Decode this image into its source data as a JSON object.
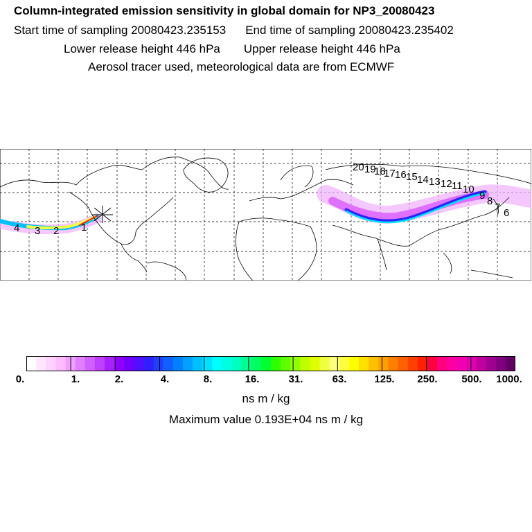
{
  "header": {
    "title": "Column-integrated emission sensitivity in global domain for NP3_20080423",
    "start_label": "Start time of sampling 20080423.235153",
    "end_label": "End time of sampling 20080423.235402",
    "lower_label": "Lower release height  446 hPa",
    "upper_label": "Upper release height  446 hPa",
    "info": "Aerosol tracer used, meteorological data are from ECMWF"
  },
  "map": {
    "trajectory_labels": [
      "1",
      "2",
      "3",
      "4",
      "6",
      "7",
      "8",
      "9",
      "10",
      "11",
      "12",
      "13",
      "14",
      "15",
      "16",
      "17",
      "18",
      "19",
      "20"
    ],
    "release_marker": "release-point",
    "colors": {
      "coast": "#000000",
      "grid": "#000000"
    }
  },
  "colorbar": {
    "tick_labels": [
      "0.",
      "1.",
      "2.",
      "4.",
      "8.",
      "16.",
      "31.",
      "63.",
      "125.",
      "250.",
      "500.",
      "1000."
    ],
    "colors": [
      "#ffffff",
      "#ffe8ff",
      "#ffd2ff",
      "#ffbcff",
      "#f0a0ff",
      "#e080ff",
      "#d060ff",
      "#c040ff",
      "#a820ff",
      "#9000ff",
      "#7000ff",
      "#5010ff",
      "#3020ff",
      "#2040ff",
      "#1060ff",
      "#0080ff",
      "#00a0ff",
      "#00c0ff",
      "#00e0ff",
      "#00ffff",
      "#00ffe0",
      "#00ffc0",
      "#00ff90",
      "#00ff60",
      "#00ff30",
      "#30ff00",
      "#60ff00",
      "#90ff00",
      "#c0ff00",
      "#e0ff00",
      "#f0ff40",
      "#ffff80",
      "#ffff40",
      "#ffff00",
      "#ffe000",
      "#ffc000",
      "#ffa000",
      "#ff8000",
      "#ff6000",
      "#ff4000",
      "#ff2000",
      "#ff0040",
      "#ff0080",
      "#ff00a0",
      "#f000b0",
      "#e000b0",
      "#c000a0",
      "#a00090",
      "#800080",
      "#600060"
    ],
    "unit": "ns m / kg"
  },
  "footer": {
    "max_value": "Maximum value  0.193E+04 ns m / kg"
  }
}
